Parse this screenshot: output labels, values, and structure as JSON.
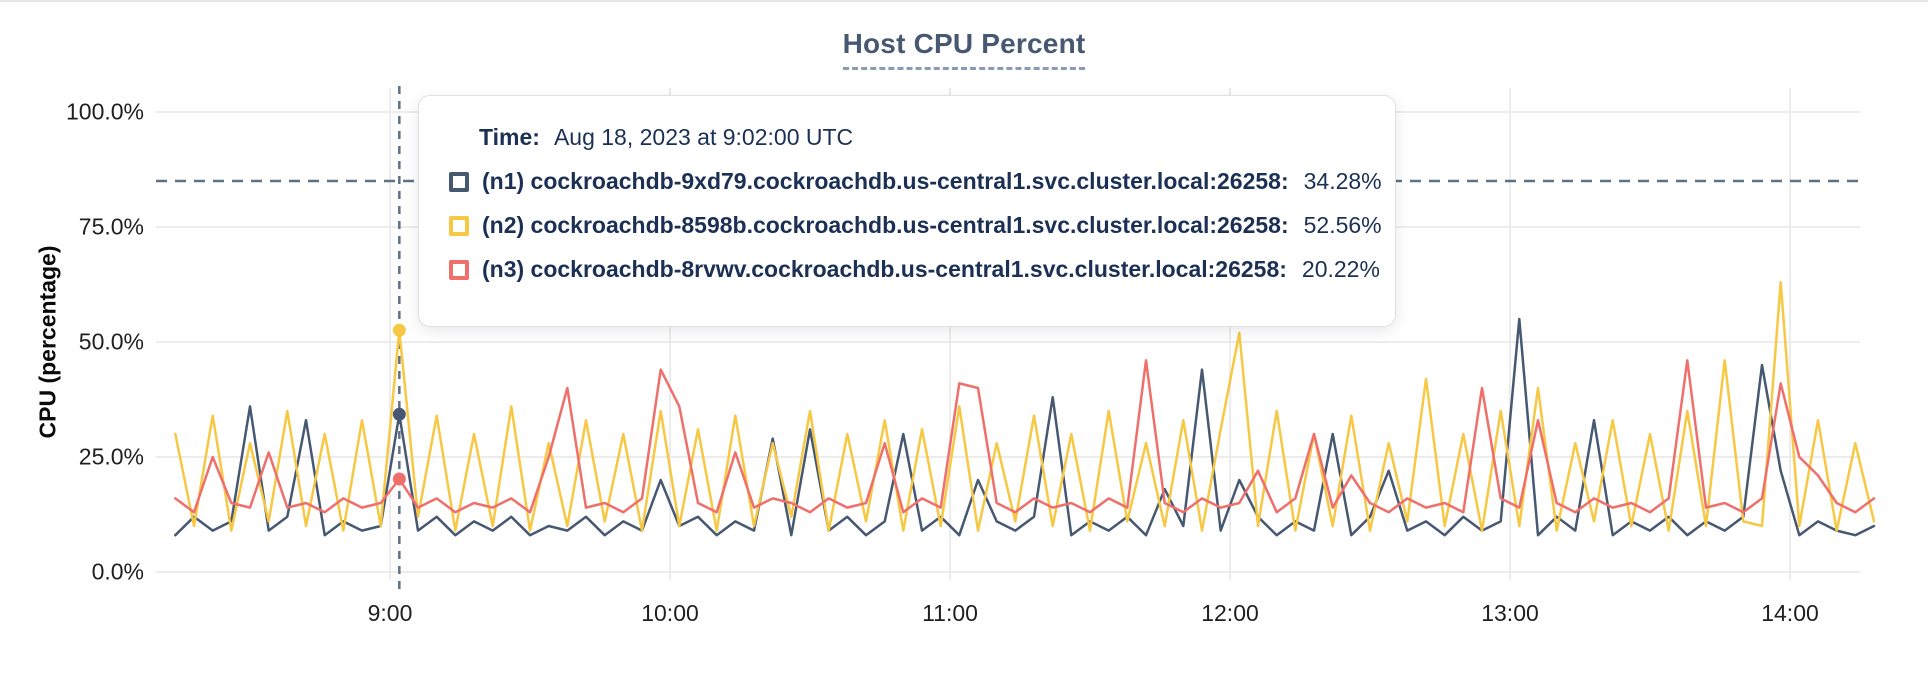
{
  "header": {
    "title": "Host CPU Percent"
  },
  "colors": {
    "n1": "#475872",
    "n2": "#f6c844",
    "n3": "#ef6f6a",
    "gridline": "#ececec",
    "dashed_guides": "#5f7186",
    "title_text": "#475872",
    "tooltip_text": "#1b3054"
  },
  "tooltip": {
    "time_label": "Time:",
    "time_value": "Aug 18, 2023 at 9:02:00 UTC",
    "rows": [
      {
        "name": "(n1) cockroachdb-9xd79.cockroachdb.us-central1.svc.cluster.local:26258:",
        "value": "34.28%",
        "color": "#475872"
      },
      {
        "name": "(n2) cockroachdb-8598b.cockroachdb.us-central1.svc.cluster.local:26258:",
        "value": "52.56%",
        "color": "#f6c844"
      },
      {
        "name": "(n3) cockroachdb-8rvwv.cockroachdb.us-central1.svc.cluster.local:26258:",
        "value": "20.22%",
        "color": "#ef6f6a"
      }
    ]
  },
  "chart_data": {
    "type": "line",
    "title": "Host CPU Percent",
    "xlabel": "",
    "ylabel": "CPU (percentage)",
    "ylim": [
      0,
      100
    ],
    "grid": true,
    "threshold_y_percent": 85,
    "hover_time_minutes": 542,
    "hover_time_label": "9:02:00",
    "y_ticks": [
      {
        "v": 100,
        "label": "100.0%"
      },
      {
        "v": 75,
        "label": "75.0%"
      },
      {
        "v": 50,
        "label": "50.0%"
      },
      {
        "v": 25,
        "label": "25.0%"
      },
      {
        "v": 0,
        "label": "0.0%"
      }
    ],
    "x_ticks": [
      {
        "t": 540,
        "label": "9:00"
      },
      {
        "t": 600,
        "label": "10:00"
      },
      {
        "t": 660,
        "label": "11:00"
      },
      {
        "t": 720,
        "label": "12:00"
      },
      {
        "t": 780,
        "label": "13:00"
      },
      {
        "t": 840,
        "label": "14:00"
      }
    ],
    "x_minutes": [
      494,
      498,
      502,
      506,
      510,
      514,
      518,
      522,
      526,
      530,
      534,
      538,
      542,
      546,
      550,
      554,
      558,
      562,
      566,
      570,
      574,
      578,
      582,
      586,
      590,
      594,
      598,
      602,
      606,
      610,
      614,
      618,
      622,
      626,
      630,
      634,
      638,
      642,
      646,
      650,
      654,
      658,
      662,
      666,
      670,
      674,
      678,
      682,
      686,
      690,
      694,
      698,
      702,
      706,
      710,
      714,
      718,
      722,
      726,
      730,
      734,
      738,
      742,
      746,
      750,
      754,
      758,
      762,
      766,
      770,
      774,
      778,
      782,
      786,
      790,
      794,
      798,
      802,
      806,
      810,
      814,
      818,
      822,
      826,
      830,
      834,
      838,
      842,
      846,
      850,
      854,
      858
    ],
    "series": [
      {
        "name": "(n1) cockroachdb-9xd79.cockroachdb.us-central1.svc.cluster.local:26258",
        "color": "#475872",
        "hover_value": 34.28,
        "values": [
          8,
          12,
          9,
          11,
          36,
          9,
          12,
          33,
          8,
          11,
          9,
          10,
          34.28,
          9,
          12,
          8,
          11,
          9,
          12,
          8,
          10,
          9,
          12,
          8,
          11,
          9,
          20,
          10,
          12,
          8,
          11,
          9,
          29,
          8,
          31,
          9,
          12,
          8,
          11,
          30,
          9,
          12,
          8,
          20,
          11,
          9,
          12,
          38,
          8,
          11,
          9,
          12,
          8,
          18,
          10,
          44,
          9,
          20,
          12,
          8,
          11,
          9,
          30,
          8,
          12,
          22,
          9,
          11,
          8,
          12,
          9,
          11,
          55,
          8,
          12,
          9,
          33,
          8,
          11,
          9,
          12,
          8,
          11,
          9,
          12,
          45,
          22,
          8,
          11,
          9,
          8,
          10
        ]
      },
      {
        "name": "(n2) cockroachdb-8598b.cockroachdb.us-central1.svc.cluster.local:26258",
        "color": "#f6c844",
        "hover_value": 52.56,
        "values": [
          30,
          10,
          34,
          9,
          28,
          11,
          35,
          10,
          30,
          9,
          33,
          10,
          52.56,
          12,
          34,
          9,
          30,
          10,
          36,
          9,
          28,
          10,
          33,
          11,
          30,
          9,
          35,
          10,
          31,
          9,
          34,
          10,
          28,
          12,
          35,
          9,
          30,
          11,
          33,
          9,
          31,
          10,
          36,
          9,
          28,
          11,
          34,
          10,
          30,
          9,
          35,
          11,
          28,
          10,
          33,
          9,
          31,
          52,
          10,
          35,
          9,
          30,
          10,
          34,
          9,
          28,
          11,
          42,
          10,
          30,
          9,
          35,
          10,
          40,
          9,
          28,
          11,
          33,
          10,
          30,
          9,
          35,
          10,
          46,
          11,
          10,
          63,
          10,
          33,
          9,
          28,
          11
        ]
      },
      {
        "name": "(n3) cockroachdb-8rvwv.cockroachdb.us-central1.svc.cluster.local:26258",
        "color": "#ef6f6a",
        "hover_value": 20.22,
        "values": [
          16,
          13,
          25,
          15,
          14,
          26,
          14,
          15,
          13,
          16,
          14,
          15,
          20.22,
          14,
          16,
          13,
          15,
          14,
          16,
          13,
          25,
          40,
          14,
          15,
          13,
          16,
          44,
          36,
          15,
          13,
          26,
          14,
          16,
          15,
          13,
          16,
          14,
          15,
          28,
          13,
          16,
          14,
          41,
          40,
          15,
          13,
          16,
          14,
          15,
          13,
          16,
          14,
          46,
          15,
          13,
          16,
          14,
          15,
          22,
          13,
          16,
          30,
          14,
          21,
          15,
          13,
          16,
          14,
          15,
          13,
          40,
          16,
          14,
          33,
          15,
          13,
          16,
          14,
          15,
          13,
          16,
          46,
          14,
          15,
          13,
          16,
          41,
          25,
          21,
          15,
          13,
          16
        ]
      }
    ]
  }
}
